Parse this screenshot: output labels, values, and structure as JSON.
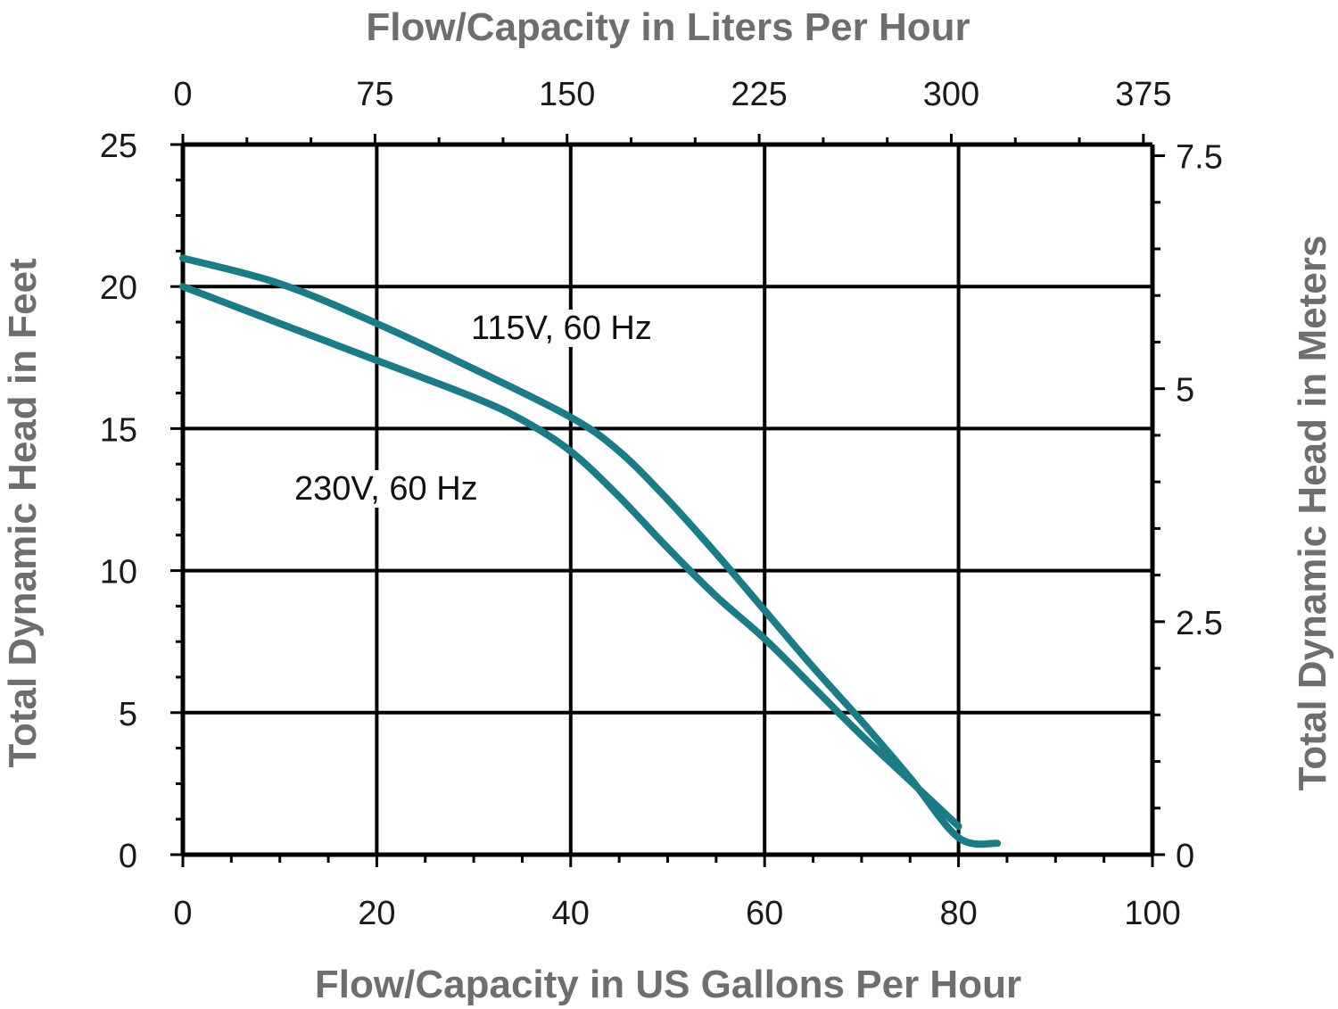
{
  "chart_data": {
    "type": "line",
    "title": "",
    "xlabel": "Flow/Capacity in US Gallons Per Hour",
    "xlabel_top": "Flow/Capacity in Liters Per Hour",
    "ylabel": "Total Dynamic Head in Feet",
    "ylabel_right": "Total Dynamic Head in Meters",
    "xlim": [
      0,
      100
    ],
    "ylim": [
      0,
      25
    ],
    "x_ticks": [
      "0",
      "20",
      "40",
      "60",
      "80",
      "100"
    ],
    "y_ticks": [
      "0",
      "5",
      "10",
      "15",
      "20",
      "25"
    ],
    "x_top_ticks": [
      "0",
      "75",
      "150",
      "225",
      "300",
      "375"
    ],
    "y_right_ticks": [
      "0",
      "2.5",
      "5",
      "7.5"
    ],
    "grid": true,
    "series": [
      {
        "name": "115V, 60 Hz",
        "points": [
          [
            0,
            21
          ],
          [
            10,
            20.1
          ],
          [
            20,
            18.7
          ],
          [
            30,
            17.1
          ],
          [
            40,
            15.4
          ],
          [
            45,
            14.2
          ],
          [
            50,
            12.5
          ],
          [
            55,
            10.6
          ],
          [
            60,
            8.6
          ],
          [
            65,
            6.6
          ],
          [
            70,
            4.7
          ],
          [
            75,
            2.7
          ],
          [
            80,
            0.6
          ],
          [
            84,
            0.4
          ]
        ]
      },
      {
        "name": "230V, 60 Hz",
        "points": [
          [
            0,
            20
          ],
          [
            10,
            18.7
          ],
          [
            20,
            17.4
          ],
          [
            30,
            16.1
          ],
          [
            35,
            15.3
          ],
          [
            40,
            14.2
          ],
          [
            45,
            12.6
          ],
          [
            50,
            10.8
          ],
          [
            55,
            9.1
          ],
          [
            60,
            7.6
          ],
          [
            65,
            5.9
          ],
          [
            70,
            4.2
          ],
          [
            75,
            2.6
          ],
          [
            80,
            1.0
          ]
        ]
      }
    ],
    "annotations": [
      {
        "text": "115V, 60 Hz",
        "series": 0
      },
      {
        "text": "230V, 60 Hz",
        "series": 1
      }
    ],
    "line_color": "#1b7b86"
  }
}
